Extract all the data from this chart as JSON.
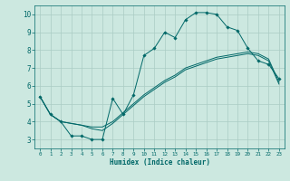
{
  "xlabel": "Humidex (Indice chaleur)",
  "xlim": [
    -0.5,
    23.5
  ],
  "ylim": [
    2.5,
    10.5
  ],
  "yticks": [
    3,
    4,
    5,
    6,
    7,
    8,
    9,
    10
  ],
  "xticks": [
    0,
    1,
    2,
    3,
    4,
    5,
    6,
    7,
    8,
    9,
    10,
    11,
    12,
    13,
    14,
    15,
    16,
    17,
    18,
    19,
    20,
    21,
    22,
    23
  ],
  "bg_color": "#cce8e0",
  "line_color": "#006868",
  "grid_color": "#aaccc4",
  "series1_x": [
    0,
    1,
    2,
    3,
    4,
    5,
    6,
    7,
    8,
    9,
    10,
    11,
    12,
    13,
    14,
    15,
    16,
    17,
    18,
    19,
    20,
    21,
    22,
    23
  ],
  "series1_y": [
    5.4,
    4.4,
    4.0,
    3.2,
    3.2,
    3.0,
    3.0,
    5.3,
    4.4,
    5.5,
    7.7,
    8.1,
    9.0,
    8.7,
    9.7,
    10.1,
    10.1,
    10.0,
    9.3,
    9.1,
    8.1,
    7.4,
    7.2,
    6.4
  ],
  "series2_x": [
    0,
    1,
    2,
    3,
    4,
    5,
    6,
    7,
    8,
    9,
    10,
    11,
    12,
    13,
    14,
    15,
    16,
    17,
    18,
    19,
    20,
    21,
    22,
    23
  ],
  "series2_y": [
    5.4,
    4.4,
    4.0,
    3.9,
    3.8,
    3.7,
    3.7,
    4.0,
    4.5,
    5.0,
    5.5,
    5.9,
    6.3,
    6.6,
    7.0,
    7.2,
    7.4,
    7.6,
    7.7,
    7.8,
    7.9,
    7.8,
    7.5,
    6.2
  ],
  "series3_x": [
    0,
    1,
    2,
    3,
    4,
    5,
    6,
    7,
    8,
    9,
    10,
    11,
    12,
    13,
    14,
    15,
    16,
    17,
    18,
    19,
    20,
    21,
    22,
    23
  ],
  "series3_y": [
    5.4,
    4.4,
    4.0,
    3.9,
    3.8,
    3.6,
    3.5,
    3.9,
    4.4,
    4.9,
    5.4,
    5.8,
    6.2,
    6.5,
    6.9,
    7.1,
    7.3,
    7.5,
    7.6,
    7.7,
    7.8,
    7.7,
    7.4,
    6.1
  ]
}
